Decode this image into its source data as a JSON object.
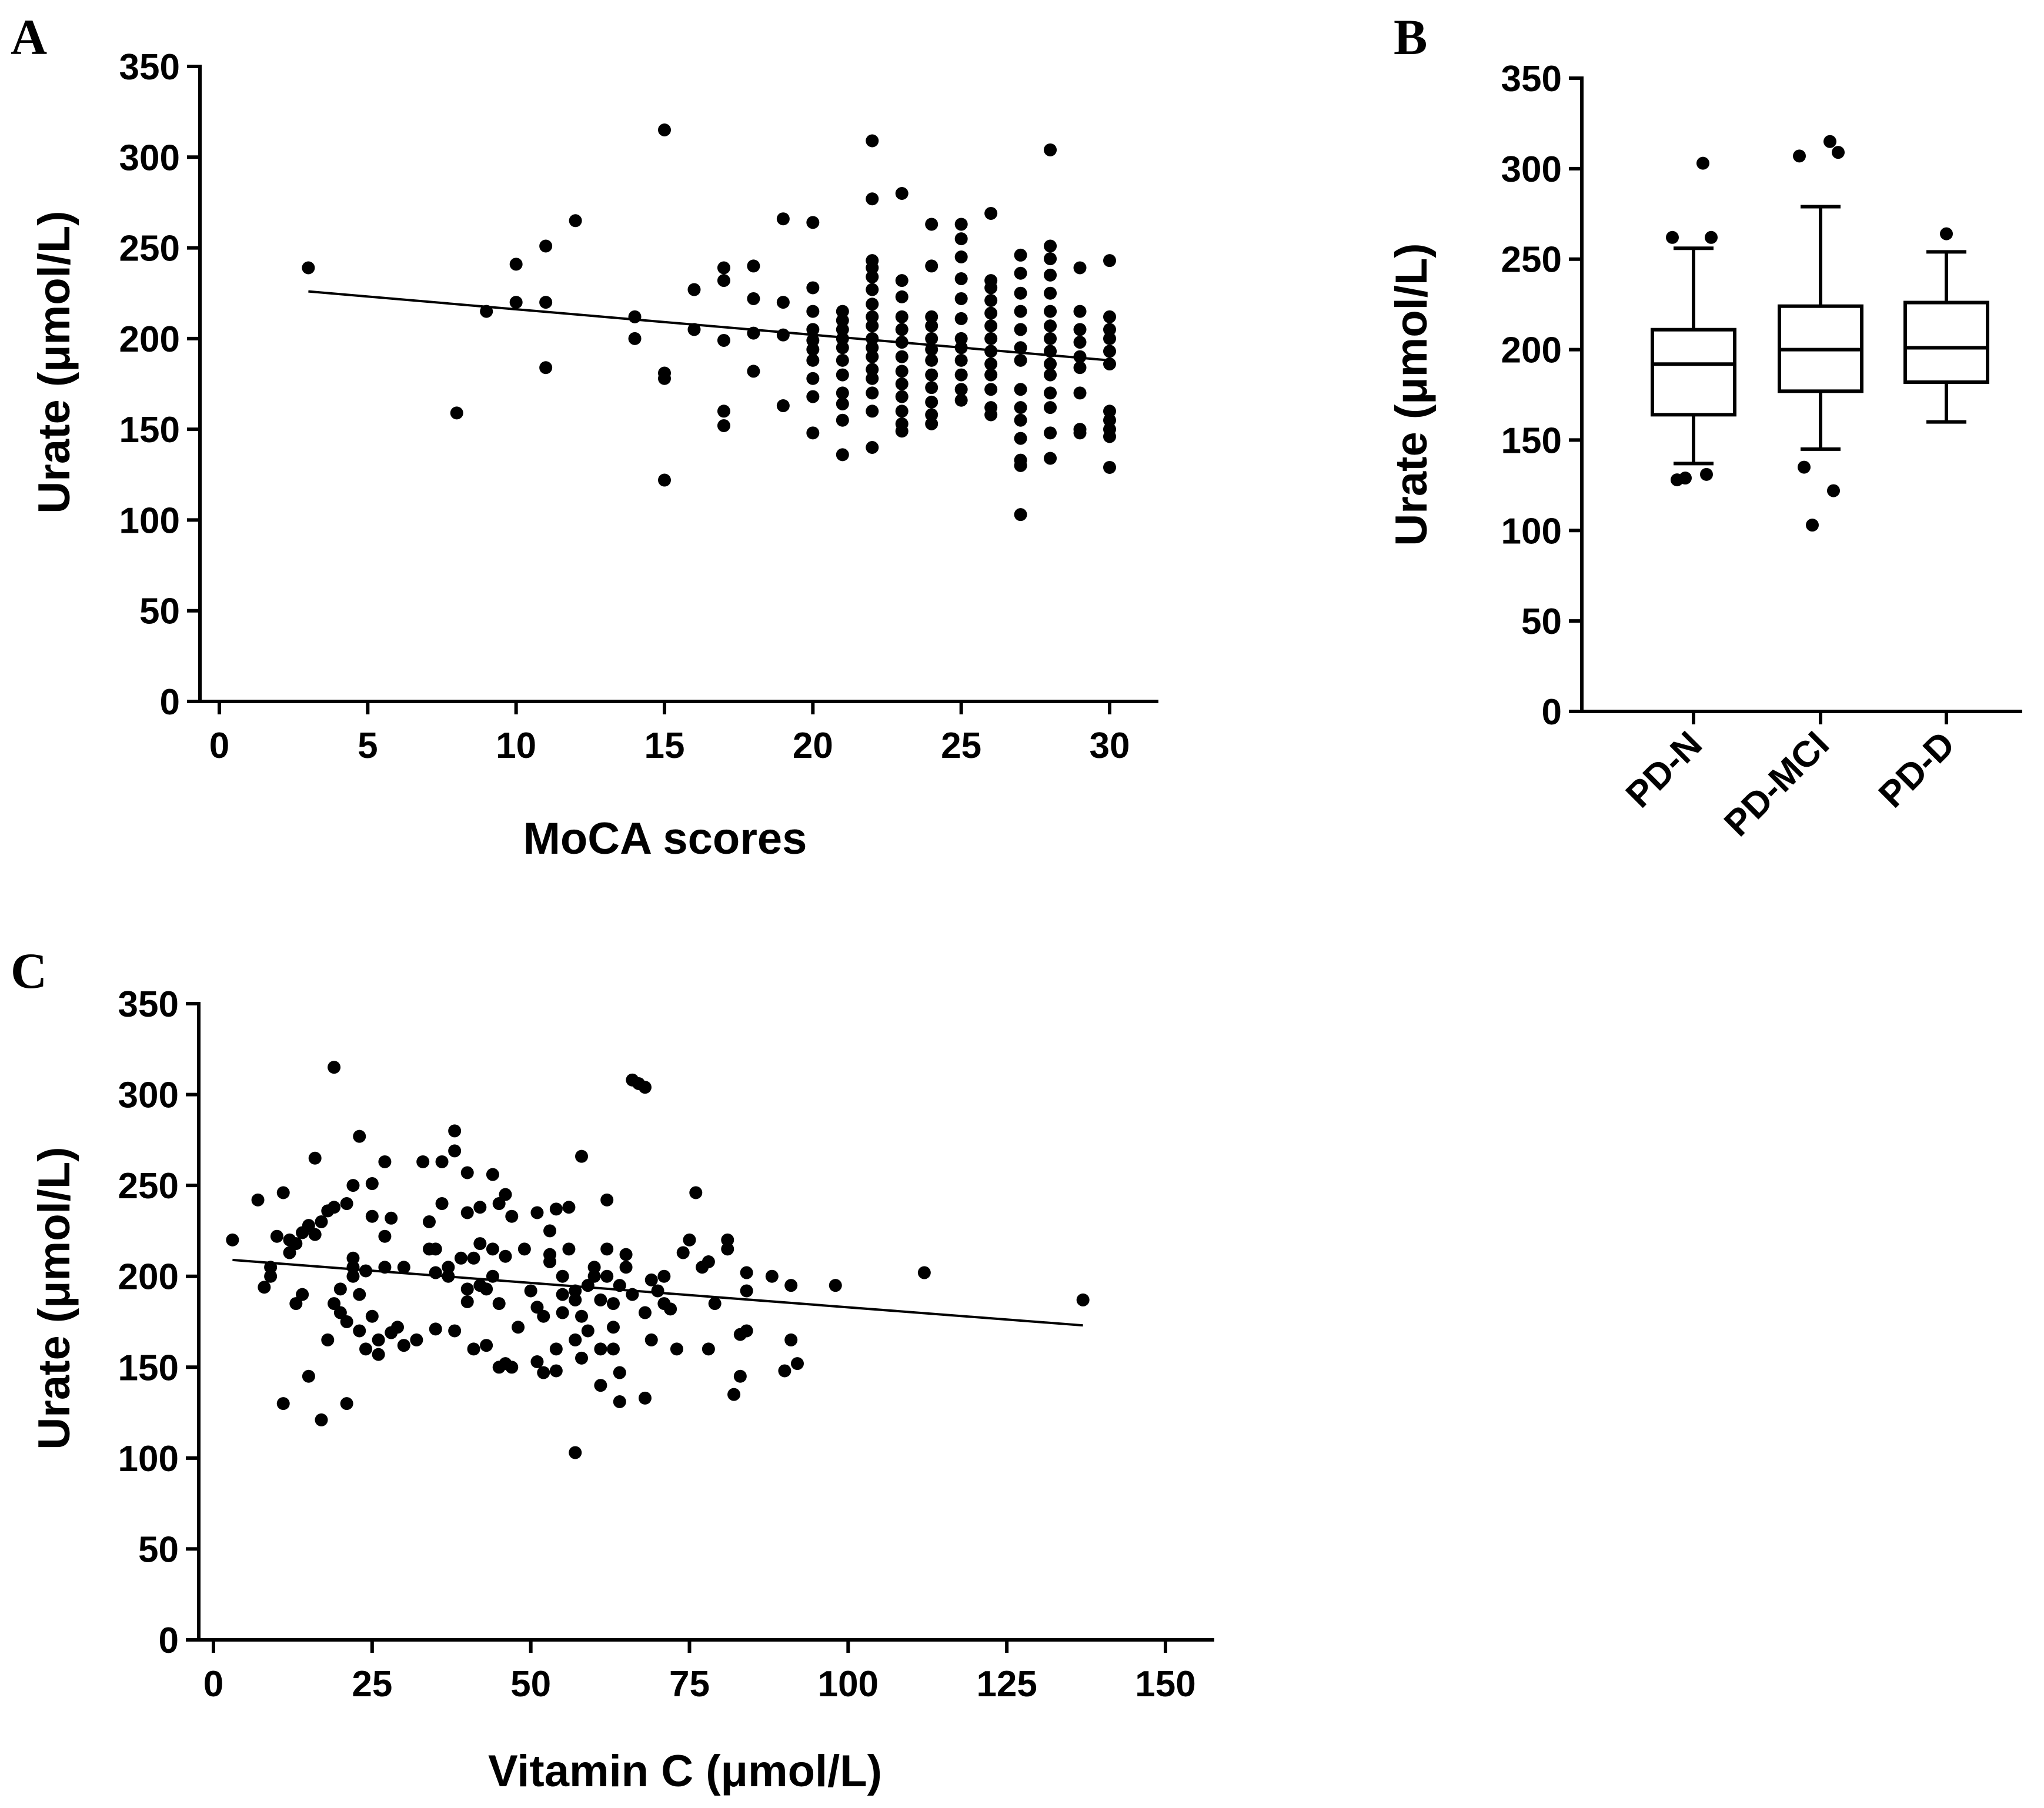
{
  "chart_data": [
    {
      "panel": "A",
      "type": "scatter",
      "xlabel": "MoCA scores",
      "ylabel": "Urate (μmol/L)",
      "xlim": [
        0,
        30
      ],
      "ylim": [
        0,
        350
      ],
      "xticks": [
        0,
        5,
        10,
        15,
        20,
        25,
        30
      ],
      "yticks": [
        0,
        50,
        100,
        150,
        200,
        250,
        300,
        350
      ],
      "regression_line": [
        [
          3,
          226
        ],
        [
          30,
          188
        ]
      ],
      "points": [
        [
          3,
          239
        ],
        [
          8,
          159
        ],
        [
          9,
          215
        ],
        [
          10,
          241
        ],
        [
          10,
          220
        ],
        [
          11,
          251
        ],
        [
          11,
          220
        ],
        [
          11,
          184
        ],
        [
          12,
          265
        ],
        [
          14,
          212
        ],
        [
          14,
          200
        ],
        [
          15,
          315
        ],
        [
          15,
          181
        ],
        [
          15,
          178
        ],
        [
          15,
          122
        ],
        [
          16,
          227
        ],
        [
          16,
          205
        ],
        [
          17,
          239
        ],
        [
          17,
          232
        ],
        [
          17,
          199
        ],
        [
          17,
          160
        ],
        [
          17,
          152
        ],
        [
          18,
          240
        ],
        [
          18,
          222
        ],
        [
          18,
          203
        ],
        [
          18,
          182
        ],
        [
          19,
          266
        ],
        [
          19,
          220
        ],
        [
          19,
          202
        ],
        [
          19,
          163
        ],
        [
          20,
          264
        ],
        [
          20,
          228
        ],
        [
          20,
          215
        ],
        [
          20,
          205
        ],
        [
          20,
          199
        ],
        [
          20,
          194
        ],
        [
          20,
          188
        ],
        [
          20,
          178
        ],
        [
          20,
          168
        ],
        [
          20,
          148
        ],
        [
          21,
          215
        ],
        [
          21,
          210
        ],
        [
          21,
          205
        ],
        [
          21,
          200
        ],
        [
          21,
          195
        ],
        [
          21,
          188
        ],
        [
          21,
          180
        ],
        [
          21,
          170
        ],
        [
          21,
          164
        ],
        [
          21,
          155
        ],
        [
          21,
          136
        ],
        [
          22,
          309
        ],
        [
          22,
          277
        ],
        [
          22,
          243
        ],
        [
          22,
          239
        ],
        [
          22,
          234
        ],
        [
          22,
          227
        ],
        [
          22,
          219
        ],
        [
          22,
          212
        ],
        [
          22,
          207
        ],
        [
          22,
          200
        ],
        [
          22,
          195
        ],
        [
          22,
          190
        ],
        [
          22,
          183
        ],
        [
          22,
          178
        ],
        [
          22,
          170
        ],
        [
          22,
          160
        ],
        [
          22,
          140
        ],
        [
          23,
          280
        ],
        [
          23,
          232
        ],
        [
          23,
          223
        ],
        [
          23,
          212
        ],
        [
          23,
          205
        ],
        [
          23,
          198
        ],
        [
          23,
          190
        ],
        [
          23,
          182
        ],
        [
          23,
          175
        ],
        [
          23,
          168
        ],
        [
          23,
          160
        ],
        [
          23,
          153
        ],
        [
          23,
          149
        ],
        [
          24,
          263
        ],
        [
          24,
          240
        ],
        [
          24,
          212
        ],
        [
          24,
          207
        ],
        [
          24,
          200
        ],
        [
          24,
          194
        ],
        [
          24,
          188
        ],
        [
          24,
          180
        ],
        [
          24,
          173
        ],
        [
          24,
          165
        ],
        [
          24,
          158
        ],
        [
          24,
          153
        ],
        [
          25,
          263
        ],
        [
          25,
          255
        ],
        [
          25,
          245
        ],
        [
          25,
          233
        ],
        [
          25,
          222
        ],
        [
          25,
          211
        ],
        [
          25,
          200
        ],
        [
          25,
          195
        ],
        [
          25,
          188
        ],
        [
          25,
          180
        ],
        [
          25,
          172
        ],
        [
          25,
          166
        ],
        [
          26,
          269
        ],
        [
          26,
          232
        ],
        [
          26,
          228
        ],
        [
          26,
          221
        ],
        [
          26,
          214
        ],
        [
          26,
          207
        ],
        [
          26,
          200
        ],
        [
          26,
          193
        ],
        [
          26,
          186
        ],
        [
          26,
          180
        ],
        [
          26,
          172
        ],
        [
          26,
          162
        ],
        [
          26,
          158
        ],
        [
          27,
          246
        ],
        [
          27,
          236
        ],
        [
          27,
          225
        ],
        [
          27,
          215
        ],
        [
          27,
          205
        ],
        [
          27,
          195
        ],
        [
          27,
          188
        ],
        [
          27,
          172
        ],
        [
          27,
          162
        ],
        [
          27,
          155
        ],
        [
          27,
          145
        ],
        [
          27,
          133
        ],
        [
          27,
          130
        ],
        [
          27,
          103
        ],
        [
          28,
          304
        ],
        [
          28,
          251
        ],
        [
          28,
          244
        ],
        [
          28,
          235
        ],
        [
          28,
          225
        ],
        [
          28,
          215
        ],
        [
          28,
          207
        ],
        [
          28,
          200
        ],
        [
          28,
          193
        ],
        [
          28,
          186
        ],
        [
          28,
          180
        ],
        [
          28,
          170
        ],
        [
          28,
          162
        ],
        [
          28,
          148
        ],
        [
          28,
          134
        ],
        [
          29,
          239
        ],
        [
          29,
          215
        ],
        [
          29,
          205
        ],
        [
          29,
          198
        ],
        [
          29,
          190
        ],
        [
          29,
          184
        ],
        [
          29,
          170
        ],
        [
          29,
          150
        ],
        [
          29,
          148
        ],
        [
          30,
          243
        ],
        [
          30,
          212
        ],
        [
          30,
          205
        ],
        [
          30,
          200
        ],
        [
          30,
          193
        ],
        [
          30,
          186
        ],
        [
          30,
          160
        ],
        [
          30,
          155
        ],
        [
          30,
          150
        ],
        [
          30,
          146
        ],
        [
          30,
          129
        ]
      ]
    },
    {
      "panel": "B",
      "type": "box",
      "ylabel": "Urate (μmol/L)",
      "ylim": [
        0,
        350
      ],
      "yticks": [
        0,
        50,
        100,
        150,
        200,
        250,
        300,
        350
      ],
      "categories": [
        "PD-N",
        "PD-MCI",
        "PD-D"
      ],
      "boxes": [
        {
          "whisker_low": 137,
          "q1": 164,
          "median": 192,
          "q3": 211,
          "whisker_high": 256,
          "outliers": [
            128,
            131,
            129,
            262,
            262,
            303
          ]
        },
        {
          "whisker_low": 145,
          "q1": 177,
          "median": 200,
          "q3": 224,
          "whisker_high": 279,
          "outliers": [
            135,
            122,
            103,
            309,
            307,
            315
          ]
        },
        {
          "whisker_low": 160,
          "q1": 182,
          "median": 201,
          "q3": 226,
          "whisker_high": 254,
          "outliers": [
            264
          ]
        }
      ]
    },
    {
      "panel": "C",
      "type": "scatter",
      "xlabel": "Vitamin C (μmol/L)",
      "ylabel": "Urate (μmol/L)",
      "xlim": [
        0,
        150
      ],
      "ylim": [
        0,
        350
      ],
      "xticks": [
        0,
        25,
        50,
        75,
        100,
        125,
        150
      ],
      "yticks": [
        0,
        50,
        100,
        150,
        200,
        250,
        300,
        350
      ],
      "regression_line": [
        [
          3,
          209
        ],
        [
          137,
          173
        ]
      ],
      "points": [
        [
          3,
          220
        ],
        [
          7,
          242
        ],
        [
          8,
          194
        ],
        [
          9,
          205
        ],
        [
          9,
          200
        ],
        [
          10,
          222
        ],
        [
          11,
          130
        ],
        [
          11,
          246
        ],
        [
          12,
          213
        ],
        [
          12,
          220
        ],
        [
          13,
          218
        ],
        [
          13,
          185
        ],
        [
          14,
          224
        ],
        [
          14,
          190
        ],
        [
          15,
          145
        ],
        [
          15,
          228
        ],
        [
          16,
          265
        ],
        [
          16,
          223
        ],
        [
          17,
          121
        ],
        [
          17,
          230
        ],
        [
          18,
          165
        ],
        [
          18,
          236
        ],
        [
          19,
          238
        ],
        [
          19,
          185
        ],
        [
          19,
          315
        ],
        [
          20,
          180
        ],
        [
          20,
          193
        ],
        [
          21,
          130
        ],
        [
          21,
          240
        ],
        [
          21,
          175
        ],
        [
          22,
          250
        ],
        [
          22,
          210
        ],
        [
          22,
          205
        ],
        [
          22,
          200
        ],
        [
          23,
          277
        ],
        [
          23,
          170
        ],
        [
          23,
          190
        ],
        [
          24,
          203
        ],
        [
          24,
          160
        ],
        [
          25,
          251
        ],
        [
          25,
          233
        ],
        [
          25,
          178
        ],
        [
          26,
          165
        ],
        [
          26,
          157
        ],
        [
          27,
          263
        ],
        [
          27,
          205
        ],
        [
          27,
          222
        ],
        [
          28,
          232
        ],
        [
          28,
          169
        ],
        [
          29,
          172
        ],
        [
          30,
          162
        ],
        [
          30,
          205
        ],
        [
          32,
          165
        ],
        [
          33,
          263
        ],
        [
          34,
          230
        ],
        [
          34,
          215
        ],
        [
          35,
          215
        ],
        [
          35,
          202
        ],
        [
          35,
          171
        ],
        [
          36,
          263
        ],
        [
          36,
          240
        ],
        [
          37,
          205
        ],
        [
          37,
          200
        ],
        [
          38,
          269
        ],
        [
          38,
          280
        ],
        [
          38,
          170
        ],
        [
          39,
          210
        ],
        [
          40,
          186
        ],
        [
          40,
          235
        ],
        [
          40,
          257
        ],
        [
          40,
          193
        ],
        [
          41,
          210
        ],
        [
          41,
          160
        ],
        [
          42,
          218
        ],
        [
          42,
          238
        ],
        [
          42,
          195
        ],
        [
          43,
          193
        ],
        [
          43,
          162
        ],
        [
          44,
          256
        ],
        [
          44,
          200
        ],
        [
          44,
          215
        ],
        [
          45,
          185
        ],
        [
          45,
          150
        ],
        [
          45,
          240
        ],
        [
          46,
          245
        ],
        [
          46,
          152
        ],
        [
          46,
          211
        ],
        [
          47,
          150
        ],
        [
          47,
          233
        ],
        [
          48,
          172
        ],
        [
          49,
          215
        ],
        [
          50,
          192
        ],
        [
          51,
          153
        ],
        [
          51,
          235
        ],
        [
          51,
          183
        ],
        [
          52,
          178
        ],
        [
          52,
          147
        ],
        [
          53,
          212
        ],
        [
          53,
          208
        ],
        [
          53,
          225
        ],
        [
          54,
          160
        ],
        [
          54,
          148
        ],
        [
          54,
          237
        ],
        [
          55,
          200
        ],
        [
          55,
          180
        ],
        [
          55,
          190
        ],
        [
          56,
          238
        ],
        [
          56,
          215
        ],
        [
          57,
          192
        ],
        [
          57,
          187
        ],
        [
          57,
          165
        ],
        [
          57,
          103
        ],
        [
          58,
          266
        ],
        [
          58,
          155
        ],
        [
          58,
          178
        ],
        [
          59,
          195
        ],
        [
          59,
          170
        ],
        [
          60,
          205
        ],
        [
          60,
          200
        ],
        [
          61,
          187
        ],
        [
          61,
          160
        ],
        [
          61,
          140
        ],
        [
          62,
          242
        ],
        [
          62,
          215
        ],
        [
          62,
          200
        ],
        [
          63,
          185
        ],
        [
          63,
          172
        ],
        [
          63,
          160
        ],
        [
          64,
          147
        ],
        [
          64,
          131
        ],
        [
          64,
          195
        ],
        [
          65,
          205
        ],
        [
          65,
          212
        ],
        [
          66,
          190
        ],
        [
          66,
          308
        ],
        [
          67,
          306
        ],
        [
          68,
          304
        ],
        [
          68,
          180
        ],
        [
          68,
          133
        ],
        [
          69,
          198
        ],
        [
          69,
          165
        ],
        [
          70,
          192
        ],
        [
          71,
          185
        ],
        [
          71,
          200
        ],
        [
          72,
          182
        ],
        [
          73,
          160
        ],
        [
          74,
          213
        ],
        [
          75,
          220
        ],
        [
          76,
          246
        ],
        [
          77,
          205
        ],
        [
          78,
          160
        ],
        [
          78,
          208
        ],
        [
          79,
          185
        ],
        [
          81,
          220
        ],
        [
          81,
          215
        ],
        [
          82,
          135
        ],
        [
          83,
          168
        ],
        [
          83,
          145
        ],
        [
          84,
          170
        ],
        [
          84,
          192
        ],
        [
          84,
          202
        ],
        [
          88,
          200
        ],
        [
          90,
          148
        ],
        [
          91,
          165
        ],
        [
          91,
          195
        ],
        [
          92,
          152
        ],
        [
          98,
          195
        ],
        [
          112,
          202
        ],
        [
          137,
          187
        ]
      ]
    }
  ],
  "panels": {
    "a": {
      "letter": "A",
      "xlabel": "MoCA scores",
      "ylabel": "Urate (μmol/L)"
    },
    "b": {
      "letter": "B",
      "ylabel": "Urate (μmol/L)"
    },
    "c": {
      "letter": "C",
      "xlabel": "Vitamin C (μmol/L)",
      "ylabel": "Urate (μmol/L)"
    }
  }
}
